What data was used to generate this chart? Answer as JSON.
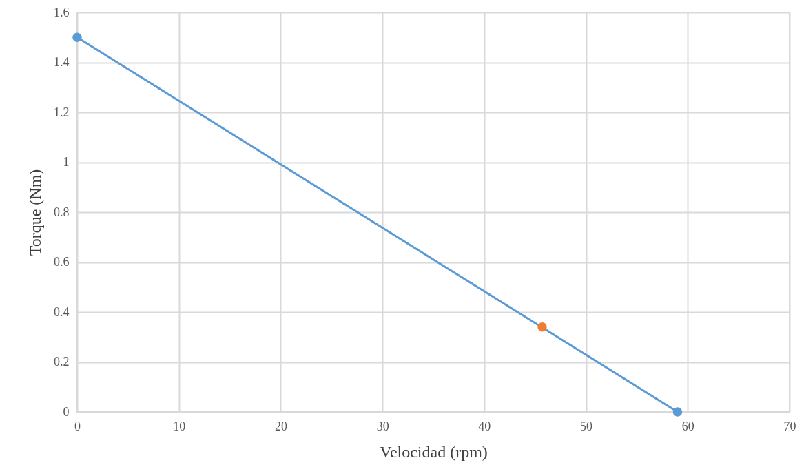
{
  "chart_data": {
    "type": "line",
    "xlabel": "Velocidad (rpm)",
    "ylabel": "Torque (Nm)",
    "xlim": [
      0,
      70
    ],
    "xticks": [
      0,
      10,
      20,
      30,
      40,
      50,
      60,
      70
    ],
    "ylim": [
      0,
      1.6
    ],
    "yticks": [
      0,
      0.2,
      0.4,
      0.6,
      0.8,
      1,
      1.2,
      1.4,
      1.6
    ],
    "grid": true,
    "marker": "circle",
    "series": [
      {
        "type": "line",
        "color": "#5b9bd5",
        "x": [
          0,
          59
        ],
        "values": [
          1.5,
          0
        ]
      },
      {
        "type": "scatter",
        "color": "#ed7d31",
        "x": [
          45.7
        ],
        "values": [
          0.34
        ]
      }
    ]
  }
}
